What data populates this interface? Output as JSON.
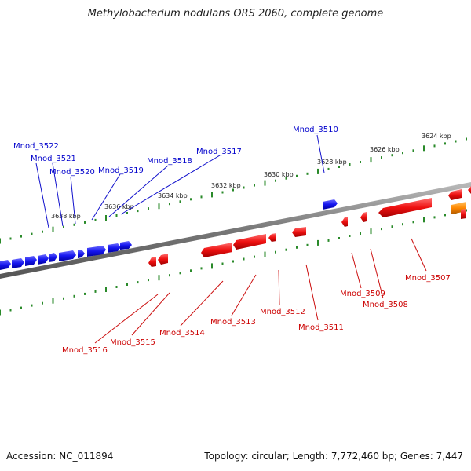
{
  "title": "Methylobacterium nodulans ORS 2060, complete genome",
  "footer": {
    "accession": "Accession: NC_011894",
    "summary": "Topology: circular; Length: 7,772,460 bp; Genes: 7,447"
  },
  "colors": {
    "forward_gene": "#1010ee",
    "reverse_gene": "#ee1010",
    "other_gene": "#ff8800",
    "backbone": "#7a7a7a",
    "tick": "#2a8a2a",
    "forward_label": "#0000cc",
    "reverse_label": "#cc0000"
  },
  "ruler_labels": [
    "3624 kbp",
    "3626 kbp",
    "3628 kbp",
    "3630 kbp",
    "3632 kbp",
    "3634 kbp",
    "3636 kbp",
    "3638 kbp"
  ],
  "forward_genes": [
    "Mnod_3522",
    "Mnod_3521",
    "Mnod_3520",
    "Mnod_3519",
    "Mnod_3518",
    "Mnod_3517",
    "Mnod_3510"
  ],
  "reverse_genes": [
    "Mnod_3516",
    "Mnod_3515",
    "Mnod_3514",
    "Mnod_3513",
    "Mnod_3512",
    "Mnod_3511",
    "Mnod_3509",
    "Mnod_3508",
    "Mnod_3507"
  ]
}
